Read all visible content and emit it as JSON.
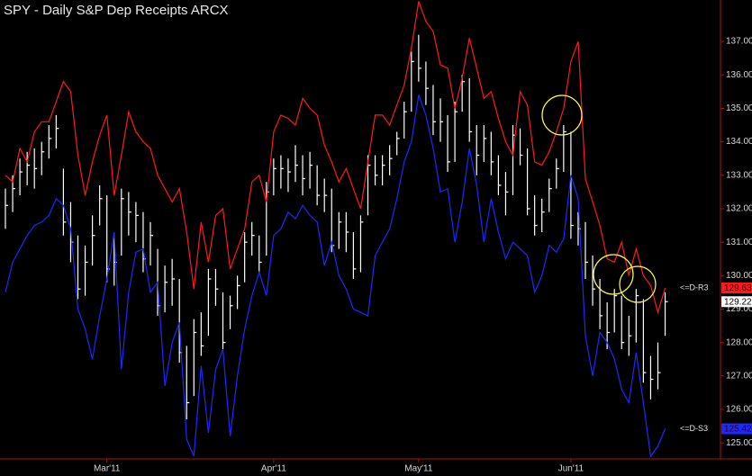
{
  "chart_data": {
    "type": "ohlc",
    "title": "SPY - Daily  S&P Dep Receipts  ARCX",
    "categories": [
      null,
      null,
      null,
      null,
      null,
      null,
      null,
      null,
      null,
      null,
      null,
      null,
      null,
      null,
      "Mar'11",
      null,
      null,
      null,
      null,
      null,
      null,
      null,
      null,
      null,
      null,
      null,
      null,
      null,
      null,
      null,
      null,
      null,
      null,
      null,
      null,
      null,
      null,
      "Apr'11",
      null,
      null,
      null,
      null,
      null,
      null,
      null,
      null,
      null,
      null,
      null,
      null,
      null,
      null,
      null,
      null,
      null,
      null,
      null,
      "May'11",
      null,
      null,
      null,
      null,
      null,
      null,
      null,
      null,
      null,
      null,
      null,
      null,
      null,
      null,
      null,
      null,
      null,
      null,
      null,
      null,
      "Jun'11",
      null,
      null,
      null,
      null,
      null,
      null,
      null,
      null,
      null,
      null,
      null,
      null,
      null
    ],
    "high": [
      132.6,
      133.0,
      133.5,
      133.7,
      133.8,
      134.0,
      134.5,
      134.8,
      133.2,
      132.2,
      131.2,
      130.9,
      131.8,
      132.7,
      132.4,
      131.2,
      132.6,
      132.5,
      132.2,
      131.9,
      131.6,
      130.8,
      130.3,
      130.5,
      129.9,
      127.9,
      128.7,
      128.9,
      130.2,
      130.2,
      129.5,
      129.4,
      130.0,
      131.3,
      131.6,
      131.2,
      132.8,
      133.5,
      133.6,
      133.5,
      133.9,
      133.6,
      133.7,
      133.3,
      132.9,
      132.6,
      131.9,
      131.9,
      131.3,
      131.8,
      133.6,
      133.6,
      133.6,
      133.9,
      134.3,
      135.2,
      136.7,
      137.2,
      136.4,
      135.7,
      135.3,
      134.8,
      135.2,
      136.0,
      135.9,
      134.5,
      134.5,
      134.3,
      133.6,
      133.1,
      134.5,
      134.4,
      133.8,
      132.4,
      132.3,
      132.9,
      133.5,
      134.5,
      134.3,
      131.9,
      131.6,
      130.6,
      129.9,
      129.2,
      129.6,
      129.4,
      128.8,
      129.6,
      129.3,
      127.6,
      128.0,
      129.5
    ],
    "low": [
      131.4,
      131.9,
      132.4,
      132.7,
      132.6,
      133.0,
      133.5,
      133.8,
      131.2,
      130.4,
      129.3,
      129.4,
      130.3,
      131.5,
      129.8,
      129.7,
      130.6,
      131.2,
      131.0,
      130.1,
      130.3,
      128.8,
      128.9,
      129.1,
      127.4,
      125.7,
      126.4,
      127.6,
      128.2,
      129.1,
      127.8,
      128.4,
      129.0,
      129.8,
      130.6,
      130.1,
      130.6,
      132.4,
      132.6,
      132.5,
      132.8,
      132.4,
      132.6,
      132.1,
      131.9,
      130.7,
      130.8,
      130.7,
      129.9,
      130.1,
      131.8,
      132.7,
      132.7,
      133.0,
      133.6,
      134.1,
      134.9,
      135.8,
      135.1,
      134.2,
      134.0,
      133.1,
      133.4,
      134.9,
      134.0,
      133.0,
      133.4,
      133.0,
      132.4,
      131.8,
      132.4,
      133.3,
      131.8,
      131.2,
      131.3,
      131.9,
      132.6,
      133.1,
      131.1,
      130.9,
      129.9,
      129.1,
      128.4,
      127.8,
      128.3,
      127.8,
      127.6,
      128.0,
      126.8,
      126.3,
      126.6,
      128.2
    ],
    "close": [
      132.1,
      132.6,
      133.1,
      133.3,
      133.2,
      133.7,
      134.1,
      134.4,
      131.6,
      131.0,
      129.6,
      130.4,
      131.2,
      132.3,
      130.2,
      130.4,
      132.3,
      131.9,
      131.8,
      130.5,
      131.2,
      129.1,
      129.8,
      129.9,
      127.7,
      126.2,
      128.3,
      127.9,
      129.9,
      129.6,
      128.0,
      129.1,
      129.7,
      131.0,
      131.2,
      130.4,
      132.5,
      133.2,
      133.2,
      133.1,
      133.3,
      132.9,
      133.3,
      132.4,
      132.4,
      130.9,
      131.6,
      131.3,
      130.2,
      131.6,
      133.3,
      133.0,
      133.3,
      133.5,
      134.1,
      134.9,
      136.4,
      136.2,
      135.6,
      134.6,
      134.6,
      133.4,
      134.9,
      135.8,
      134.3,
      133.6,
      134.1,
      133.4,
      132.7,
      132.5,
      134.2,
      133.6,
      132.0,
      131.5,
      131.9,
      132.6,
      133.2,
      134.3,
      131.5,
      131.4,
      130.4,
      129.6,
      128.8,
      128.3,
      129.4,
      128.0,
      128.2,
      129.4,
      127.1,
      126.9,
      127.1,
      129.22
    ],
    "bar_color": "#ffffff",
    "series": [
      {
        "name": "<=D-R3",
        "color": "#ff1a1a",
        "values": [
          133.0,
          132.8,
          133.8,
          133.4,
          134.3,
          134.6,
          134.6,
          135.2,
          135.8,
          135.5,
          133.6,
          132.4,
          133.4,
          134.2,
          134.8,
          132.4,
          133.6,
          134.9,
          134.3,
          134.0,
          133.8,
          133.0,
          132.6,
          132.2,
          132.6,
          131.3,
          129.6,
          131.6,
          130.4,
          131.8,
          132.0,
          130.2,
          130.8,
          131.4,
          132.8,
          133.0,
          132.2,
          134.3,
          134.8,
          134.7,
          134.5,
          135.3,
          135.0,
          134.8,
          133.9,
          133.4,
          132.8,
          133.2,
          132.6,
          132.0,
          133.4,
          134.8,
          134.8,
          134.5,
          135.1,
          135.7,
          136.8,
          138.2,
          137.6,
          137.3,
          136.3,
          136.2,
          135.0,
          135.9,
          137.1,
          136.2,
          135.3,
          135.5,
          134.7,
          134.0,
          133.6,
          135.5,
          135.1,
          133.4,
          133.3,
          133.7,
          134.3,
          135.0,
          136.4,
          137.0,
          132.9,
          132.2,
          131.5,
          130.5,
          130.4,
          131.0,
          130.0,
          130.8,
          130.0,
          129.7,
          128.9,
          129.63
        ]
      },
      {
        "name": "<=D-S3",
        "color": "#1a2aff",
        "values": [
          129.5,
          130.4,
          130.8,
          131.2,
          131.5,
          131.6,
          131.8,
          132.3,
          132.1,
          131.4,
          129.0,
          128.4,
          127.5,
          128.8,
          129.9,
          131.3,
          127.2,
          129.5,
          130.7,
          130.8,
          129.5,
          129.8,
          126.7,
          128.0,
          128.6,
          125.1,
          124.6,
          127.3,
          125.3,
          127.2,
          127.8,
          125.2,
          127.0,
          128.4,
          129.4,
          130.1,
          129.4,
          131.2,
          131.4,
          131.9,
          131.7,
          132.1,
          131.8,
          131.6,
          130.3,
          131.0,
          130.0,
          129.6,
          129.0,
          128.9,
          128.8,
          130.6,
          131.0,
          131.4,
          132.3,
          133.4,
          134.0,
          135.4,
          134.8,
          133.8,
          132.5,
          132.6,
          131.0,
          132.2,
          133.8,
          132.7,
          131.0,
          132.3,
          131.3,
          130.5,
          131.0,
          130.8,
          130.6,
          129.5,
          130.0,
          130.9,
          130.7,
          131.1,
          133.0,
          132.3,
          128.2,
          127.0,
          128.3,
          128.0,
          127.5,
          126.6,
          126.2,
          127.7,
          126.2,
          124.6,
          124.9,
          125.42
        ]
      }
    ],
    "ylim": [
      124.52,
      138.24
    ],
    "yticks": [
      {
        "value": 125,
        "label": "125.00"
      },
      {
        "value": 126,
        "label": "126.00"
      },
      {
        "value": 127,
        "label": "127.00"
      },
      {
        "value": 128,
        "label": "128.00"
      },
      {
        "value": 129,
        "label": "129.00"
      },
      {
        "value": 130,
        "label": "130.00"
      },
      {
        "value": 131,
        "label": "131.00"
      },
      {
        "value": 132,
        "label": "132.00"
      },
      {
        "value": 133,
        "label": "133.00"
      },
      {
        "value": 134,
        "label": "134.00"
      },
      {
        "value": 135,
        "label": "135.00"
      },
      {
        "value": 136,
        "label": "136.00"
      },
      {
        "value": 137,
        "label": "137.00"
      }
    ]
  }
}
